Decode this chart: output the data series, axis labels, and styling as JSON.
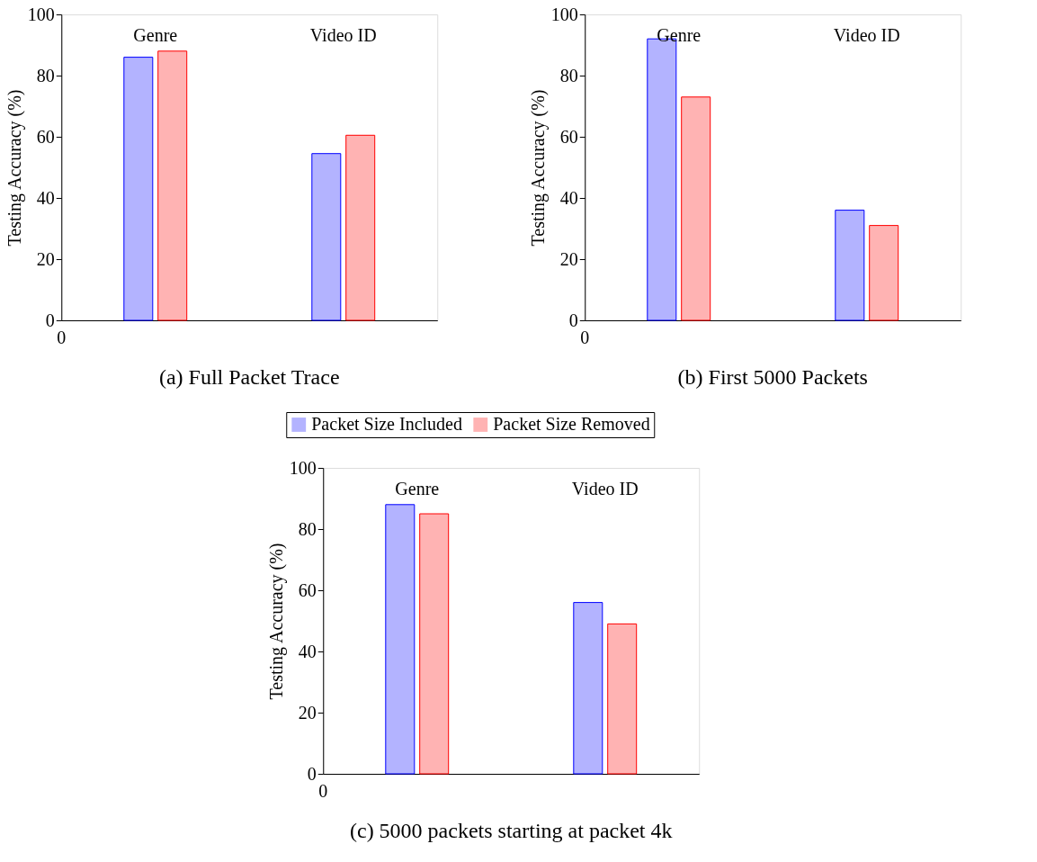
{
  "chart_data": [
    {
      "type": "bar",
      "title": "(a) Full Packet Trace",
      "ylabel": "Testing Accuracy (%)",
      "categories": [
        "Genre",
        "Video ID"
      ],
      "series": [
        {
          "name": "Packet Size Included",
          "color": "#b3b3ff",
          "values": [
            86,
            54.5
          ]
        },
        {
          "name": "Packet Size Removed",
          "color": "#ffb3b3",
          "values": [
            88,
            60.5
          ]
        }
      ],
      "ylim": [
        0,
        100
      ],
      "yticks": [
        0,
        20,
        40,
        60,
        80,
        100
      ],
      "annotations": [
        "0"
      ],
      "legend": "bottom"
    },
    {
      "type": "bar",
      "title": "(b) First 5000 Packets",
      "ylabel": "Testing Accuracy (%)",
      "categories": [
        "Genre",
        "Video ID"
      ],
      "series": [
        {
          "name": "Packet Size Included",
          "color": "#b3b3ff",
          "values": [
            92,
            36
          ]
        },
        {
          "name": "Packet Size Removed",
          "color": "#ffb3b3",
          "values": [
            73,
            31
          ]
        }
      ],
      "ylim": [
        0,
        100
      ],
      "yticks": [
        0,
        20,
        40,
        60,
        80,
        100
      ],
      "annotations": [
        "0"
      ],
      "legend": false
    },
    {
      "type": "bar",
      "title": "(c) 5000 packets starting at packet 4k",
      "ylabel": "Testing Accuracy (%)",
      "categories": [
        "Genre",
        "Video ID"
      ],
      "series": [
        {
          "name": "Packet Size Included",
          "color": "#b3b3ff",
          "values": [
            88,
            56
          ]
        },
        {
          "name": "Packet Size Removed",
          "color": "#ffb3b3",
          "values": [
            85,
            49
          ]
        }
      ],
      "ylim": [
        0,
        100
      ],
      "yticks": [
        0,
        20,
        40,
        60,
        80,
        100
      ],
      "annotations": [
        "0"
      ],
      "legend": false
    }
  ]
}
